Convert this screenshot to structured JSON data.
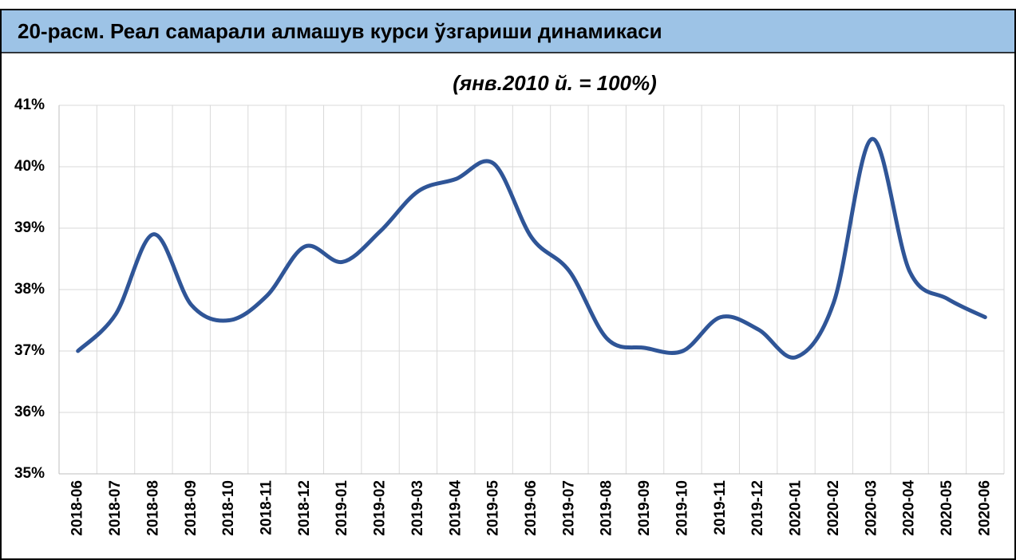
{
  "chart_data": {
    "type": "line",
    "title": "20-расм. Реал самарали алмашув курси ўзгариши динамикаси",
    "subtitle": "(янв.2010 й. = 100%)",
    "categories": [
      "2018-06",
      "2018-07",
      "2018-08",
      "2018-09",
      "2018-10",
      "2018-11",
      "2018-12",
      "2019-01",
      "2019-02",
      "2019-03",
      "2019-04",
      "2019-05",
      "2019-06",
      "2019-07",
      "2019-08",
      "2019-09",
      "2019-10",
      "2019-11",
      "2019-12",
      "2020-01",
      "2020-02",
      "2020-03",
      "2020-04",
      "2020-05",
      "2020-06"
    ],
    "values": [
      37.0,
      37.6,
      38.9,
      37.75,
      37.5,
      37.9,
      38.7,
      38.45,
      38.95,
      39.6,
      39.8,
      40.05,
      38.85,
      38.3,
      37.2,
      37.05,
      37.0,
      37.55,
      37.35,
      36.9,
      37.8,
      40.45,
      38.3,
      37.85,
      37.55
    ],
    "color": "#2f5597",
    "ylim": [
      35,
      41
    ],
    "yticks": [
      {
        "value": 35,
        "label": "35%"
      },
      {
        "value": 36,
        "label": "36%"
      },
      {
        "value": 37,
        "label": "37%"
      },
      {
        "value": 38,
        "label": "38%"
      },
      {
        "value": 39,
        "label": "39%"
      },
      {
        "value": 40,
        "label": "40%"
      },
      {
        "value": 41,
        "label": "41%"
      }
    ],
    "grid": true
  }
}
